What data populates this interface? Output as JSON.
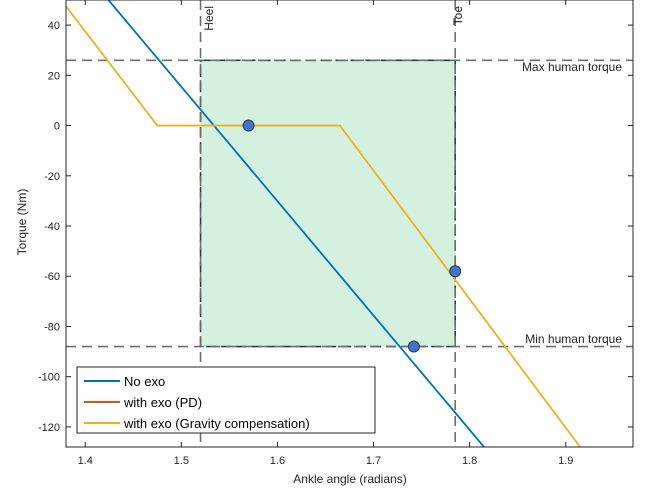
{
  "chart_data": {
    "type": "line",
    "title": "",
    "xlabel": "Ankle angle (radians)",
    "ylabel": "Torque (Nm)",
    "xlim": [
      1.38,
      1.97
    ],
    "ylim": [
      -128,
      50
    ],
    "xticks": [
      1.4,
      1.5,
      1.6,
      1.7,
      1.8,
      1.9
    ],
    "yticks": [
      -120,
      -100,
      -80,
      -60,
      -40,
      -20,
      0,
      20,
      40
    ],
    "grid": false,
    "legend_position": "bottom-left",
    "colors": {
      "region_fill": "#d4f0df",
      "region_edge": "#2e3a55",
      "guide_line": "#6e6e6e",
      "marker_fill": "#4472c4",
      "marker_edge": "#1f3a6e"
    },
    "series": [
      {
        "name": "No exo",
        "color": "#0072bd",
        "x": [
          1.38,
          1.815
        ],
        "y": [
          70.1,
          -128
        ]
      },
      {
        "name": "with exo (PD)",
        "color": "#d95319",
        "x": [],
        "y": []
      },
      {
        "name": "with exo (Gravity compensation)",
        "color": "#edb120",
        "x": [
          1.38,
          1.475,
          1.665,
          1.915
        ],
        "y": [
          47.5,
          0,
          0,
          -128
        ]
      }
    ],
    "vertical_lines": [
      {
        "x": 1.52,
        "label": "Heel"
      },
      {
        "x": 1.785,
        "label": "Toe"
      }
    ],
    "horizontal_lines": [
      {
        "y": 26,
        "label": "Max human torque"
      },
      {
        "y": -88,
        "label": "Min human torque"
      }
    ],
    "shaded_region": {
      "x": [
        1.52,
        1.785
      ],
      "y": [
        -88,
        26
      ]
    },
    "markers": [
      {
        "x": 1.57,
        "y": 0
      },
      {
        "x": 1.785,
        "y": -58
      },
      {
        "x": 1.742,
        "y": -88
      }
    ]
  }
}
